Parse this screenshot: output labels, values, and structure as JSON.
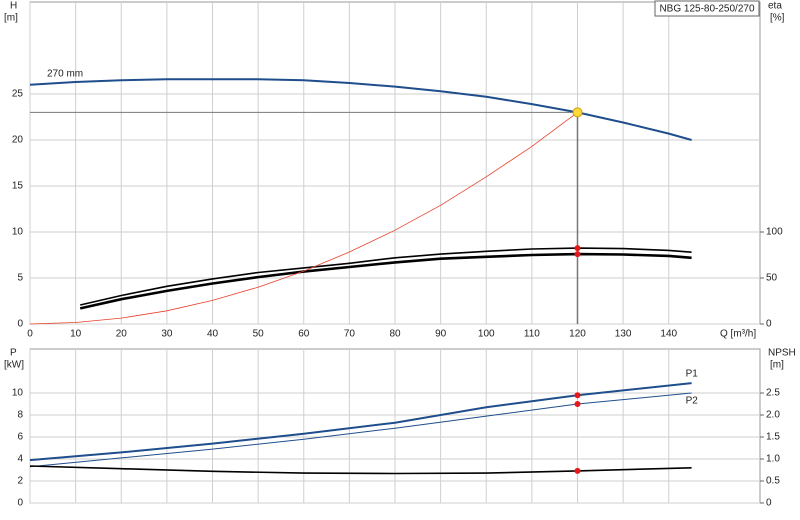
{
  "chart_data": [
    {
      "type": "line",
      "title": "NBG 125-80-250/270",
      "xlabel": "Q [m³/h]",
      "ylabel": "H",
      "yunit": "[m]",
      "y2label": "eta",
      "y2unit": "[%]",
      "xlim": [
        0,
        160
      ],
      "xticks": [
        0,
        10,
        20,
        30,
        40,
        50,
        60,
        70,
        80,
        90,
        100,
        110,
        120,
        130,
        140
      ],
      "ylim": [
        0,
        35
      ],
      "yticks": [
        0,
        5,
        10,
        15,
        20,
        25
      ],
      "y2lim": [
        0,
        350
      ],
      "y2ticks": [
        0,
        50,
        100
      ],
      "grid": true,
      "duty_point": {
        "q": 120,
        "h": 23
      },
      "series": [
        {
          "name": "270 mm",
          "color": "#1f4e8c",
          "x": [
            0,
            10,
            20,
            30,
            40,
            50,
            60,
            70,
            80,
            90,
            100,
            110,
            120,
            130,
            140,
            145
          ],
          "values": [
            26.0,
            26.3,
            26.5,
            26.6,
            26.6,
            26.6,
            26.5,
            26.2,
            25.8,
            25.3,
            24.7,
            23.9,
            23.0,
            21.9,
            20.7,
            20.0
          ]
        },
        {
          "color": "#000000",
          "axis": "y2",
          "x": [
            11,
            20,
            30,
            40,
            50,
            60,
            70,
            80,
            90,
            100,
            110,
            120,
            130,
            140,
            145
          ],
          "values": [
            20.6,
            31,
            41,
            49,
            56,
            61,
            66,
            72,
            76,
            79,
            81.5,
            82.5,
            82,
            80,
            78
          ]
        },
        {
          "color": "#000000",
          "axis": "y2",
          "x": [
            11,
            20,
            30,
            40,
            50,
            60,
            70,
            80,
            90,
            100,
            110,
            120,
            130,
            140,
            145
          ],
          "values": [
            17,
            27,
            36,
            44,
            51,
            57,
            62,
            67,
            71,
            73,
            75,
            76,
            75.5,
            74,
            72
          ]
        },
        {
          "color": "#e8402a",
          "x": [
            0,
            10,
            20,
            30,
            40,
            50,
            60,
            70,
            80,
            90,
            100,
            110,
            120
          ],
          "values": [
            0,
            0.16,
            0.64,
            1.44,
            2.56,
            4.0,
            5.75,
            7.83,
            10.2,
            12.9,
            16.0,
            19.3,
            23.0
          ]
        }
      ]
    },
    {
      "type": "line",
      "ylabel": "P",
      "yunit": "[kW]",
      "y2label": "NPSH",
      "y2unit": "[m]",
      "xlim": [
        0,
        160
      ],
      "ylim": [
        0,
        14
      ],
      "yticks": [
        0,
        2,
        4,
        6,
        8,
        10
      ],
      "y2lim": [
        0,
        3.5
      ],
      "y2ticks": [
        0,
        0.5,
        {
          "value": 1,
          "label": "1.0"
        },
        1.5,
        {
          "value": 2,
          "label": "2.0"
        },
        2.5
      ],
      "grid": true,
      "series": [
        {
          "name": "P1",
          "color": "#1f4e8c",
          "x": [
            0,
            20,
            40,
            60,
            80,
            100,
            120,
            145
          ],
          "values": [
            3.9,
            4.6,
            5.4,
            6.3,
            7.3,
            8.7,
            9.8,
            10.9
          ]
        },
        {
          "name": "P2",
          "color": "#1f4e8c",
          "x": [
            0,
            20,
            40,
            60,
            80,
            100,
            120,
            145
          ],
          "values": [
            3.3,
            4.1,
            4.9,
            5.8,
            6.8,
            7.9,
            9.0,
            10.0
          ]
        },
        {
          "color": "#000000",
          "axis": "y2",
          "x": [
            0,
            20,
            40,
            60,
            80,
            100,
            120,
            145
          ],
          "values": [
            0.84,
            0.78,
            0.72,
            0.68,
            0.67,
            0.68,
            0.73,
            0.8
          ]
        }
      ]
    }
  ]
}
